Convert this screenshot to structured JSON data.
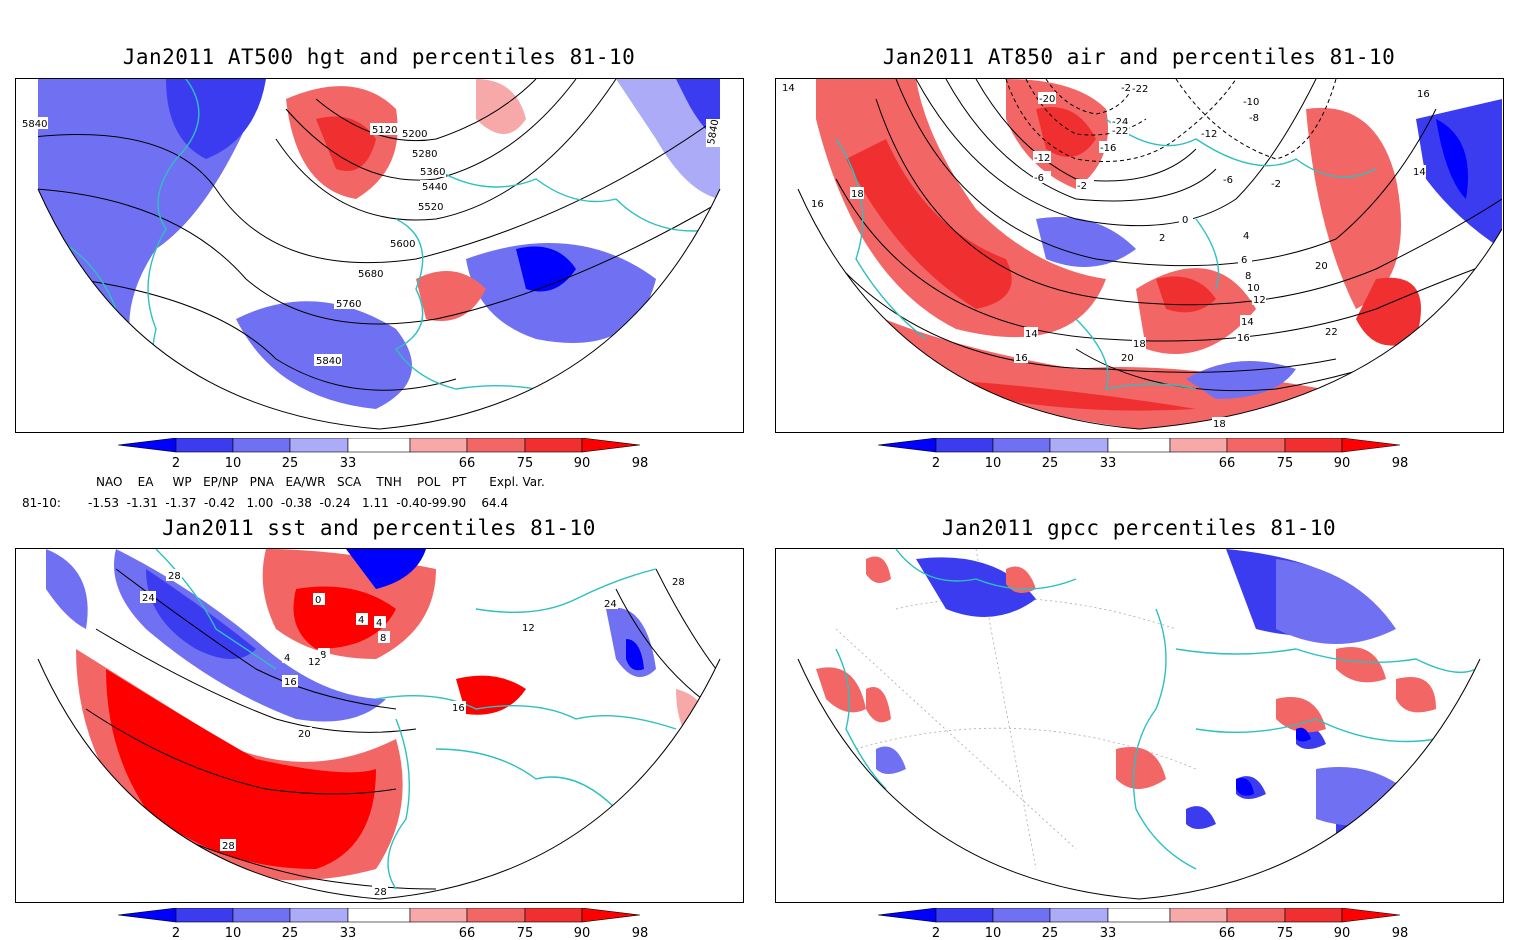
{
  "panels": {
    "p1": {
      "title": "Jan2011 AT500 hgt and percentiles 81-10",
      "contour_labels": [
        "5120",
        "5200",
        "5280",
        "5360",
        "5440",
        "5520",
        "5600",
        "5680",
        "5760",
        "5840",
        "5840",
        "5840"
      ]
    },
    "p2": {
      "title": "Jan2011 AT850 air and percentiles 81-10",
      "contour_labels": [
        "-24",
        "-22",
        "-20",
        "-24",
        "-22",
        "-16",
        "-12",
        "-12",
        "-10",
        "-8",
        "-6",
        "-6",
        "-2",
        "-2",
        "0",
        "2",
        "4",
        "6",
        "8",
        "10",
        "12",
        "14",
        "14",
        "16",
        "16",
        "16",
        "18",
        "18",
        "18",
        "20",
        "20",
        "22",
        "14",
        "16",
        "14"
      ]
    },
    "p3": {
      "title": "Jan2011 sst and percentiles 81-10",
      "contour_labels": [
        "0",
        "4",
        "4",
        "4",
        "8",
        "8",
        "12",
        "12",
        "16",
        "16",
        "20",
        "24",
        "24",
        "28",
        "28",
        "28",
        "28"
      ]
    },
    "p4": {
      "title": "Jan2011 gpcc percentiles 81-10"
    }
  },
  "colorbar": {
    "labels": [
      "2",
      "10",
      "25",
      "33",
      "66",
      "75",
      "90",
      "98"
    ],
    "colors": {
      "lt2": "#0000ff",
      "c2_10": "#3b3bf0",
      "c10_25": "#7070f2",
      "c25_33": "#ababf7",
      "c66_75": "#f7a8a8",
      "c75_90": "#f26666",
      "c90_98": "#f03030",
      "gt98": "#ff0000"
    }
  },
  "indices": {
    "header": "NAO    EA     WP   EP/NP   PNA   EA/WR   SCA    TNH    POL   PT      Expl. Var.",
    "row_label": "81-10:",
    "row_values": "-1.53  -1.31  -1.37  -0.42   1.00  -0.38  -0.24   1.11  -0.40-99.90    64.4"
  },
  "map_colors": {
    "coast": "#2ec0c0",
    "contour": "#000000",
    "grid": "#999999"
  }
}
